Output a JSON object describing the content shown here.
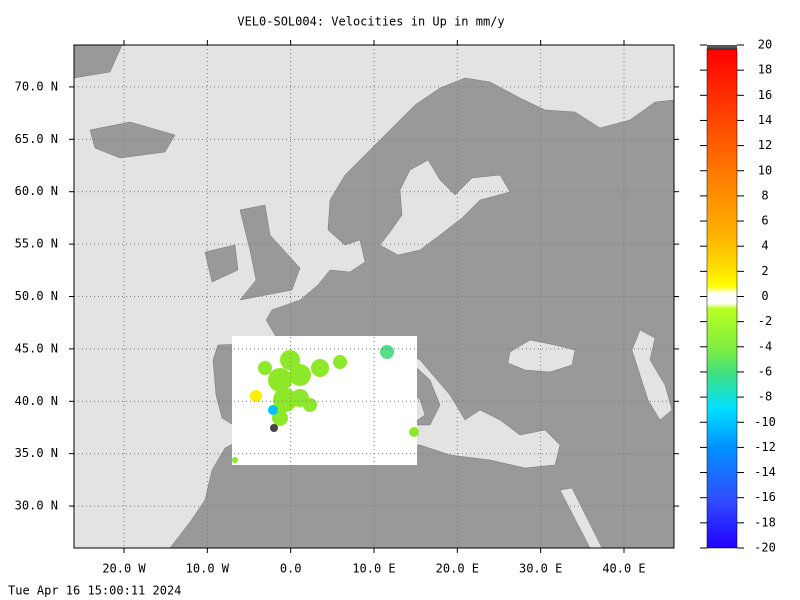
{
  "title": "VEL0-SOL004: Velocities in Up in mm/y",
  "map": {
    "xlim": [
      -26,
      46
    ],
    "ylim": [
      26,
      74
    ],
    "xticks": [
      {
        "value": -20,
        "label": "20.0 W"
      },
      {
        "value": -10,
        "label": "10.0 W"
      },
      {
        "value": 0,
        "label": "0.0"
      },
      {
        "value": 10,
        "label": "10.0 E"
      },
      {
        "value": 20,
        "label": "20.0 E"
      },
      {
        "value": 30,
        "label": "30.0 E"
      },
      {
        "value": 40,
        "label": "40.0 E"
      }
    ],
    "yticks": [
      {
        "value": 30,
        "label": "30.0 N"
      },
      {
        "value": 35,
        "label": "35.0 N"
      },
      {
        "value": 40,
        "label": "40.0 N"
      },
      {
        "value": 45,
        "label": "45.0 N"
      },
      {
        "value": 50,
        "label": "50.0 N"
      },
      {
        "value": 55,
        "label": "55.0 N"
      },
      {
        "value": 60,
        "label": "60.0 N"
      },
      {
        "value": 65,
        "label": "65.0 N"
      },
      {
        "value": 70,
        "label": "70.0 N"
      }
    ],
    "grid": true
  },
  "colorbar": {
    "lim": [
      -20,
      20
    ],
    "ticks": [
      20,
      18,
      16,
      14,
      12,
      10,
      8,
      6,
      4,
      2,
      0,
      -2,
      -4,
      -6,
      -8,
      -10,
      -12,
      -14,
      -16,
      -18,
      -20
    ]
  },
  "timestamp": "Tue Apr 16 15:00:11 2024"
}
